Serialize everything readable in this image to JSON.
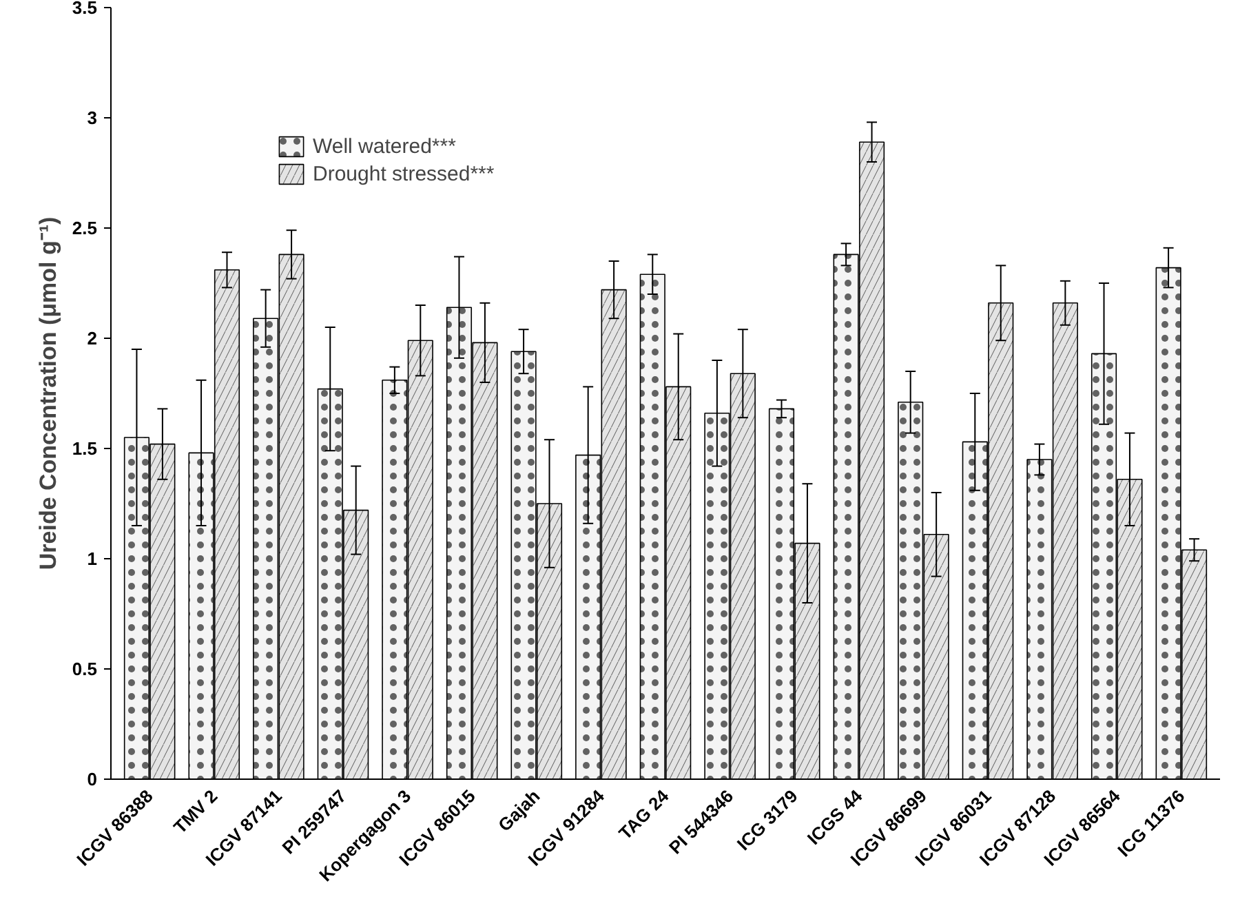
{
  "chart_data": {
    "type": "bar",
    "ylabel": "Ureide Concentration (μmol g⁻¹)",
    "categories": [
      "ICGV 86388",
      "TMV 2",
      "ICGV 87141",
      "PI 259747",
      "Kopergagon 3",
      "ICGV 86015",
      "Gajah",
      "ICGV 91284",
      "TAG 24",
      "PI 544346",
      "ICG 3179",
      "ICGS 44",
      "ICGV 86699",
      "ICGV 86031",
      "ICGV 87128",
      "ICGV 86564",
      "ICG 11376"
    ],
    "series": [
      {
        "name": "Well watered***",
        "color": "#f4f4f4",
        "values": [
          1.55,
          1.48,
          2.09,
          1.77,
          1.81,
          2.14,
          1.94,
          1.47,
          2.29,
          1.66,
          1.68,
          2.38,
          1.71,
          1.53,
          1.45,
          1.93,
          2.32
        ],
        "errors": [
          0.4,
          0.33,
          0.13,
          0.28,
          0.06,
          0.23,
          0.1,
          0.31,
          0.09,
          0.24,
          0.04,
          0.05,
          0.14,
          0.22,
          0.07,
          0.32,
          0.09
        ]
      },
      {
        "name": "Drought stressed***",
        "color": "#e4e4e4",
        "values": [
          1.52,
          2.31,
          2.38,
          1.22,
          1.99,
          1.98,
          1.25,
          2.22,
          1.78,
          1.84,
          1.07,
          2.89,
          1.11,
          2.16,
          2.16,
          1.36,
          1.04
        ],
        "errors": [
          0.16,
          0.08,
          0.11,
          0.2,
          0.16,
          0.18,
          0.29,
          0.13,
          0.24,
          0.2,
          0.27,
          0.09,
          0.19,
          0.17,
          0.1,
          0.21,
          0.05
        ]
      }
    ],
    "ylim": [
      0,
      3.5
    ],
    "yticks": [
      0,
      0.5,
      1,
      1.5,
      2,
      2.5,
      3,
      3.5
    ],
    "grid": false,
    "legend": "top left"
  }
}
